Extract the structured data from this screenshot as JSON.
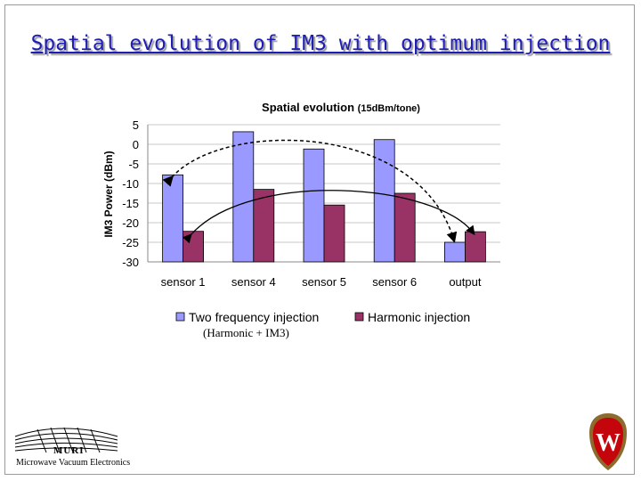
{
  "slide": {
    "title": "Spatial evolution of IM3 with optimum injection",
    "note": "(Harmonic + IM3)"
  },
  "logo": {
    "line1": "MURI",
    "line2": "Microwave Vacuum Electronics"
  },
  "crest_letter": "W",
  "colors": {
    "title": "#1e1eb4",
    "series1": "#9999ff",
    "series2": "#993366",
    "crest_red": "#c5050c"
  },
  "chart_data": {
    "type": "bar",
    "title": "Spatial evolution",
    "subtitle": "(15dBm/tone)",
    "ylabel": "IM3 Power (dBm)",
    "xlabel": "",
    "ylim": [
      -30,
      5
    ],
    "yticks": [
      5,
      0,
      -5,
      -10,
      -15,
      -20,
      -25,
      -30
    ],
    "grid": true,
    "legend": "bottom",
    "categories": [
      "sensor 1",
      "sensor 4",
      "sensor 5",
      "sensor 6",
      "output"
    ],
    "series": [
      {
        "name": "Two frequency injection",
        "values": [
          -7.8,
          3.2,
          -1.2,
          1.2,
          -25
        ],
        "color": "#9999ff"
      },
      {
        "name": "Harmonic injection",
        "values": [
          -22.2,
          -11.5,
          -15.5,
          -12.5,
          -22.3
        ],
        "color": "#993366"
      }
    ]
  }
}
